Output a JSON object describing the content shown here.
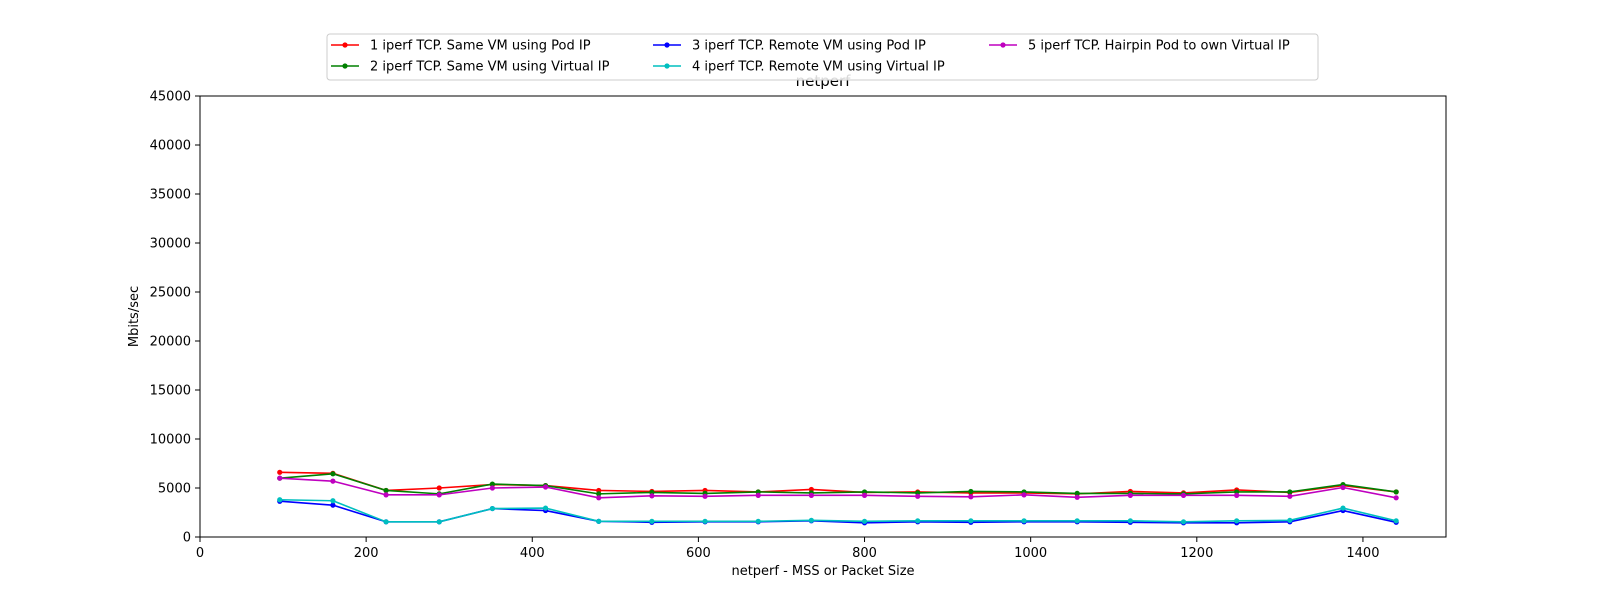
{
  "chart_data": {
    "type": "line",
    "title": "netperf",
    "xlabel": "netperf - MSS or Packet Size",
    "ylabel": "Mbits/sec",
    "xlim": [
      0,
      1500
    ],
    "ylim": [
      0,
      45000
    ],
    "xticks": [
      0,
      200,
      400,
      600,
      800,
      1000,
      1200,
      1400
    ],
    "yticks": [
      0,
      5000,
      10000,
      15000,
      20000,
      25000,
      30000,
      35000,
      40000,
      45000
    ],
    "grid": false,
    "legend_position": "top-center",
    "x": [
      96,
      160,
      224,
      288,
      352,
      416,
      480,
      544,
      608,
      672,
      736,
      800,
      864,
      928,
      992,
      1056,
      1120,
      1184,
      1248,
      1312,
      1376,
      1440
    ],
    "series": [
      {
        "name": "1 iperf TCP. Same VM using Pod IP",
        "color": "#ff0000",
        "values": [
          6600,
          6500,
          4750,
          5000,
          5350,
          5250,
          4750,
          4650,
          4750,
          4600,
          4850,
          4550,
          4600,
          4500,
          4500,
          4400,
          4650,
          4500,
          4800,
          4550,
          5250,
          4600
        ]
      },
      {
        "name": "2 iperf TCP. Same VM using Virtual IP",
        "color": "#008000",
        "values": [
          6000,
          6450,
          4750,
          4400,
          5400,
          5250,
          4400,
          4550,
          4450,
          4600,
          4500,
          4600,
          4500,
          4650,
          4600,
          4450,
          4450,
          4400,
          4600,
          4600,
          5350,
          4600
        ]
      },
      {
        "name": "3 iperf TCP. Remote VM using Pod IP",
        "color": "#0000ff",
        "values": [
          3650,
          3250,
          1550,
          1550,
          2900,
          2700,
          1600,
          1500,
          1550,
          1550,
          1650,
          1450,
          1550,
          1500,
          1550,
          1550,
          1500,
          1450,
          1450,
          1550,
          2700,
          1500
        ]
      },
      {
        "name": "4 iperf TCP. Remote VM using Virtual IP",
        "color": "#00bfbf",
        "values": [
          3800,
          3700,
          1550,
          1550,
          2900,
          2950,
          1600,
          1600,
          1600,
          1600,
          1700,
          1600,
          1650,
          1650,
          1650,
          1650,
          1650,
          1550,
          1650,
          1700,
          2950,
          1650
        ]
      },
      {
        "name": "5 iperf TCP. Hairpin Pod to own Virtual IP",
        "color": "#bf00bf",
        "values": [
          6000,
          5700,
          4300,
          4300,
          5000,
          5100,
          4000,
          4200,
          4150,
          4250,
          4250,
          4250,
          4150,
          4100,
          4300,
          4050,
          4250,
          4250,
          4250,
          4150,
          5050,
          4000
        ]
      }
    ]
  }
}
